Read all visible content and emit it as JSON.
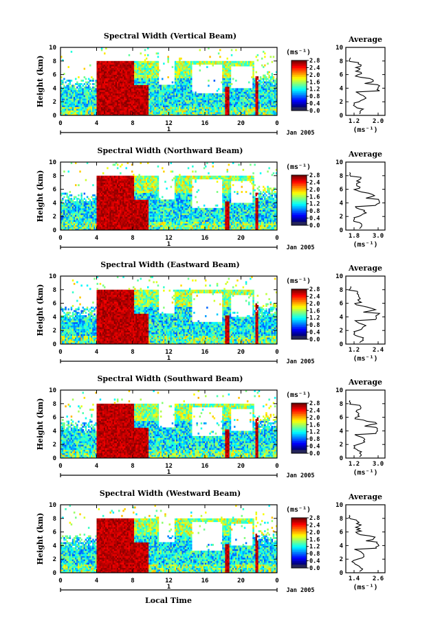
{
  "figure": {
    "xlabel": "Local Time"
  },
  "chart_data": [
    {
      "type": "heatmap",
      "title": "Spectral Width (Vertical Beam)",
      "ylabel": "Height (km)",
      "xlim": [
        0,
        24
      ],
      "ylim": [
        0,
        10
      ],
      "x_ticks": [
        "0",
        "4",
        "8",
        "12",
        "16",
        "20",
        "0"
      ],
      "y_ticks": [
        "0",
        "2",
        "4",
        "6",
        "8",
        "10"
      ],
      "day_marker": "1",
      "date_label": "Jan 2005",
      "colorbar": {
        "unit": "(ms⁻¹)",
        "ticks": [
          "0.0",
          "0.4",
          "0.8",
          "1.2",
          "1.6",
          "2.0",
          "2.4",
          "2.8"
        ]
      },
      "average": {
        "title": "Average",
        "xlabel": "(ms⁻¹)",
        "x_ticks": [
          "1.2",
          "2.0"
        ],
        "y_ticks": [
          "0",
          "2",
          "4",
          "6",
          "8",
          "10"
        ]
      }
    },
    {
      "type": "heatmap",
      "title": "Spectral Width (Northward Beam)",
      "ylabel": "Height (km)",
      "xlim": [
        0,
        24
      ],
      "ylim": [
        0,
        10
      ],
      "x_ticks": [
        "0",
        "4",
        "8",
        "12",
        "16",
        "20",
        "0"
      ],
      "y_ticks": [
        "0",
        "2",
        "4",
        "6",
        "8",
        "10"
      ],
      "day_marker": "1",
      "date_label": "Jan 2005",
      "colorbar": {
        "unit": "(ms⁻¹)",
        "ticks": [
          "0.0",
          "0.4",
          "0.8",
          "1.2",
          "1.6",
          "2.0",
          "2.4",
          "2.8"
        ]
      },
      "average": {
        "title": "Average",
        "xlabel": "(ms⁻¹)",
        "x_ticks": [
          "1.8",
          "3.0"
        ],
        "y_ticks": [
          "0",
          "2",
          "4",
          "6",
          "8",
          "10"
        ]
      }
    },
    {
      "type": "heatmap",
      "title": "Spectral Width (Eastward Beam)",
      "ylabel": "Height (km)",
      "xlim": [
        0,
        24
      ],
      "ylim": [
        0,
        10
      ],
      "x_ticks": [
        "0",
        "4",
        "8",
        "12",
        "16",
        "20",
        "0"
      ],
      "y_ticks": [
        "0",
        "2",
        "4",
        "6",
        "8",
        "10"
      ],
      "day_marker": "1",
      "date_label": "Jan 2005",
      "colorbar": {
        "unit": "(ms⁻¹)",
        "ticks": [
          "0.0",
          "0.4",
          "0.8",
          "1.2",
          "1.6",
          "2.0",
          "2.4",
          "2.8"
        ]
      },
      "average": {
        "title": "Average",
        "xlabel": "(ms⁻¹)",
        "x_ticks": [
          "1.2",
          "2.4"
        ],
        "y_ticks": [
          "0",
          "2",
          "4",
          "6",
          "8",
          "10"
        ]
      }
    },
    {
      "type": "heatmap",
      "title": "Spectral Width (Southward Beam)",
      "ylabel": "Height (km)",
      "xlim": [
        0,
        24
      ],
      "ylim": [
        0,
        10
      ],
      "x_ticks": [
        "0",
        "4",
        "8",
        "12",
        "16",
        "20",
        "0"
      ],
      "y_ticks": [
        "0",
        "2",
        "4",
        "6",
        "8",
        "10"
      ],
      "day_marker": "1",
      "date_label": "Jan 2005",
      "colorbar": {
        "unit": "(ms⁻¹)",
        "ticks": [
          "0.0",
          "0.4",
          "0.8",
          "1.2",
          "1.6",
          "2.0",
          "2.4",
          "2.8"
        ]
      },
      "average": {
        "title": "Average",
        "xlabel": "(ms⁻¹)",
        "x_ticks": [
          "1.2",
          "3.0"
        ],
        "y_ticks": [
          "0",
          "2",
          "4",
          "6",
          "8",
          "10"
        ]
      }
    },
    {
      "type": "heatmap",
      "title": "Spectral Width (Westward Beam)",
      "ylabel": "Height (km)",
      "xlim": [
        0,
        24
      ],
      "ylim": [
        0,
        10
      ],
      "x_ticks": [
        "0",
        "4",
        "8",
        "12",
        "16",
        "20",
        "0"
      ],
      "y_ticks": [
        "0",
        "2",
        "4",
        "6",
        "8",
        "10"
      ],
      "day_marker": "1",
      "date_label": "Jan 2005",
      "colorbar": {
        "unit": "(ms⁻¹)",
        "ticks": [
          "0.0",
          "0.4",
          "0.8",
          "1.2",
          "1.6",
          "2.0",
          "2.4",
          "2.8"
        ]
      },
      "average": {
        "title": "Average",
        "xlabel": "(ms⁻¹)",
        "x_ticks": [
          "1.4",
          "2.6"
        ],
        "y_ticks": [
          "0",
          "2",
          "4",
          "6",
          "8",
          "10"
        ]
      }
    }
  ]
}
